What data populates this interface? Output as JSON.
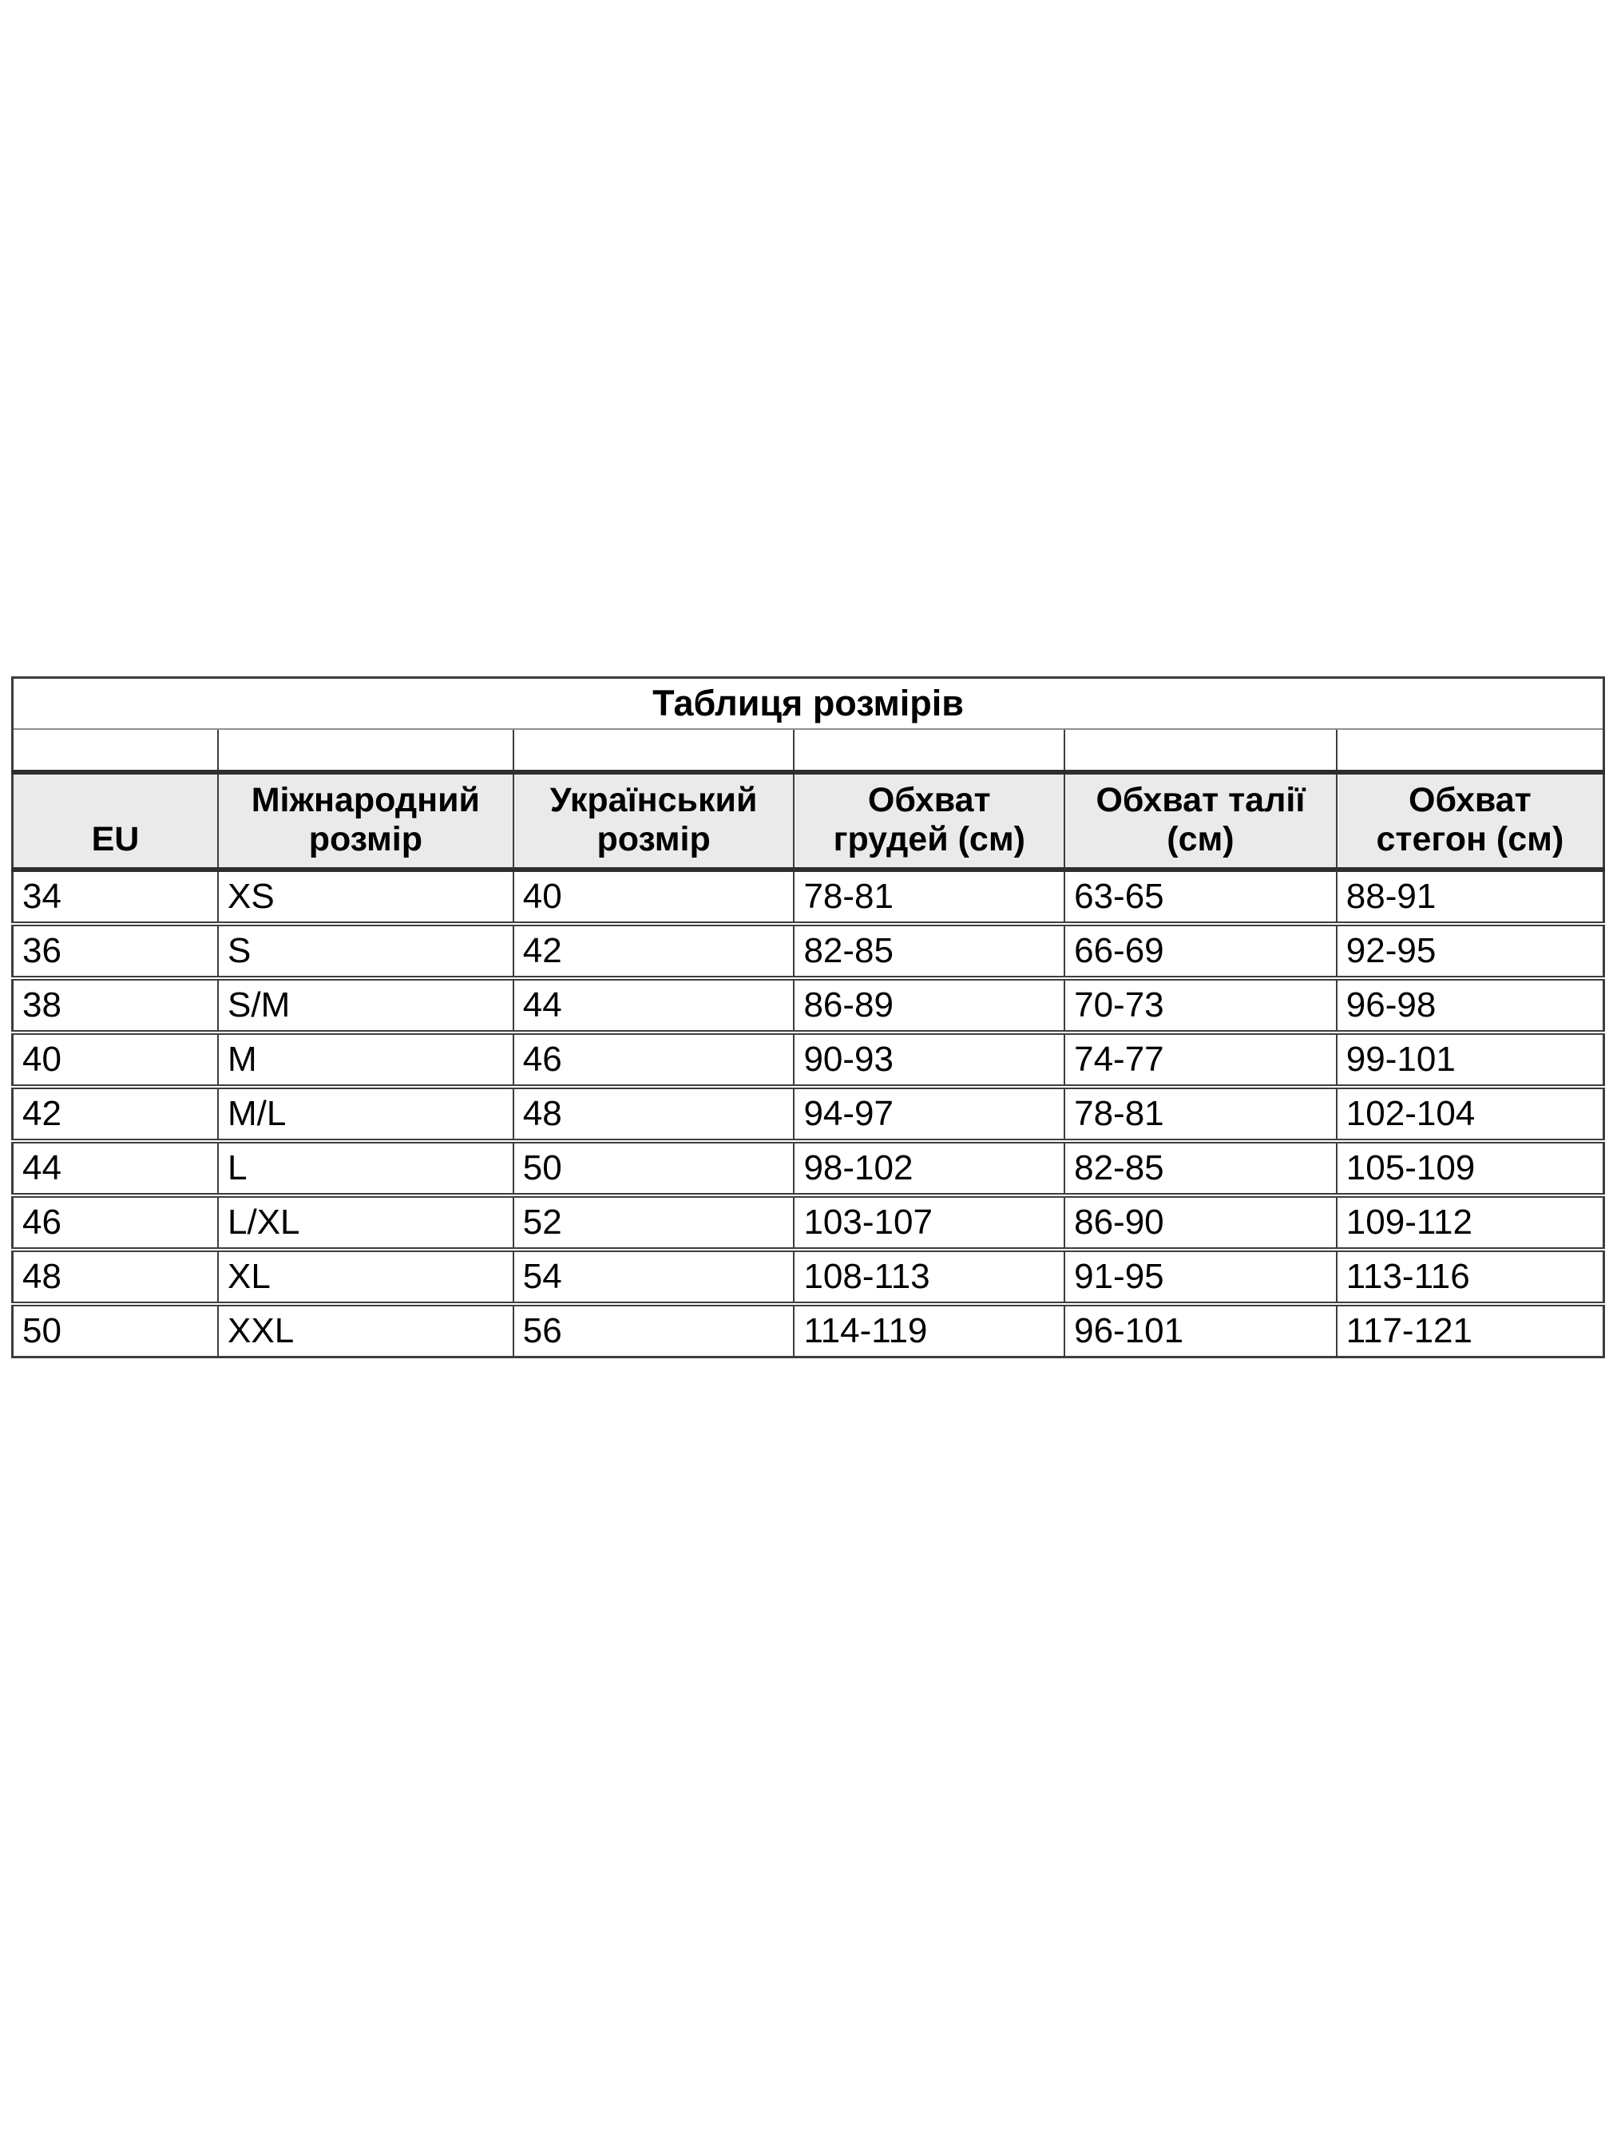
{
  "size_chart": {
    "title": "Таблиця розмірів",
    "columns": [
      "EU",
      "Міжнародний\nрозмір",
      "Український\nрозмір",
      "Обхват\nгрудей (см)",
      "Обхват талії\n(см)",
      "Обхват\nстегон (см)"
    ],
    "rows": [
      [
        "34",
        "XS",
        "40",
        "78-81",
        "63-65",
        "88-91"
      ],
      [
        "36",
        "S",
        "42",
        "82-85",
        "66-69",
        "92-95"
      ],
      [
        "38",
        "S/M",
        "44",
        "86-89",
        "70-73",
        "96-98"
      ],
      [
        "40",
        "M",
        "46",
        "90-93",
        "74-77",
        "99-101"
      ],
      [
        "42",
        "M/L",
        "48",
        "94-97",
        "78-81",
        "102-104"
      ],
      [
        "44",
        "L",
        "50",
        "98-102",
        "82-85",
        "105-109"
      ],
      [
        "46",
        "L/XL",
        "52",
        "103-107",
        "86-90",
        "109-112"
      ],
      [
        "48",
        "XL",
        "54",
        "108-113",
        "91-95",
        "113-116"
      ],
      [
        "50",
        "XXL",
        "56",
        "114-119",
        "96-101",
        "117-121"
      ]
    ],
    "colors": {
      "header_background": "#eaeaea",
      "border_dark": "#2e2e2e",
      "border_mid": "#3d3d3d",
      "title_divider": "#8f8f8f",
      "text": "#000000",
      "page_background": "#ffffff"
    }
  }
}
